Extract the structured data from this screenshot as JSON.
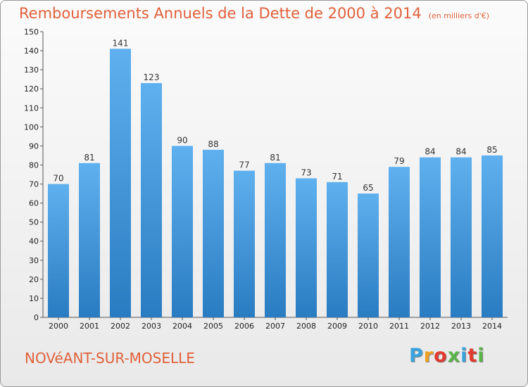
{
  "header": {
    "title": "Remboursements Annuels de la Dette de 2000 à 2014",
    "unit": "(en milliers d'€)"
  },
  "footer": {
    "commune": "NOVéANT-SUR-MOSELLE",
    "logo": "Proxiti"
  },
  "colors": {
    "bar_light": "#5eb0ee",
    "bar_dark": "#2a7cc2",
    "title": "#e0603a",
    "logo": [
      "#3aa3dd",
      "#f0a020",
      "#e23b2e",
      "#5ab548",
      "#3aa3dd",
      "#e23b2e",
      "#5ab548"
    ]
  },
  "chart_data": {
    "type": "bar",
    "title": "Remboursements Annuels de la Dette de 2000 à 2014",
    "xlabel": "",
    "ylabel": "(en milliers d'€)",
    "ylim": [
      0,
      150
    ],
    "yticks": [
      0,
      10,
      20,
      30,
      40,
      50,
      60,
      70,
      80,
      90,
      100,
      110,
      120,
      130,
      140,
      150
    ],
    "grid": false,
    "categories": [
      "2000",
      "2001",
      "2002",
      "2003",
      "2004",
      "2005",
      "2006",
      "2007",
      "2008",
      "2009",
      "2010",
      "2011",
      "2012",
      "2013",
      "2014"
    ],
    "values": [
      70,
      81,
      141,
      123,
      90,
      88,
      77,
      81,
      73,
      71,
      65,
      79,
      84,
      84,
      85
    ]
  }
}
